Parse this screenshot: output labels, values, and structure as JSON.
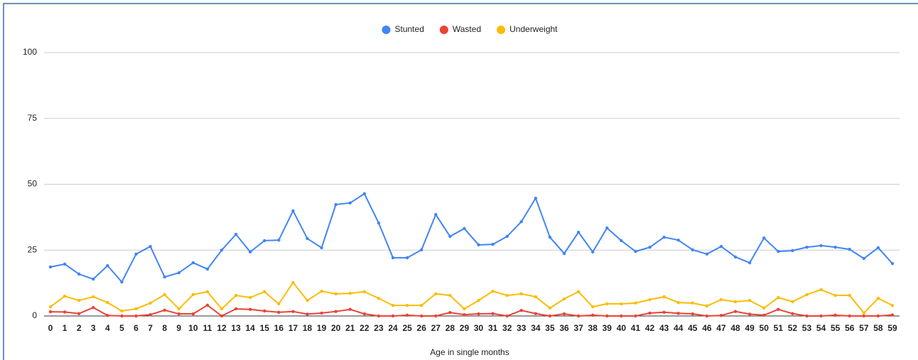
{
  "chart_data": {
    "type": "line",
    "x_label": "Age in single months",
    "categories": [
      "0",
      "1",
      "2",
      "3",
      "4",
      "5",
      "6",
      "7",
      "8",
      "9",
      "10",
      "11",
      "12",
      "13",
      "14",
      "15",
      "16",
      "17",
      "18",
      "19",
      "20",
      "21",
      "22",
      "23",
      "24",
      "25",
      "26",
      "27",
      "28",
      "29",
      "30",
      "31",
      "32",
      "33",
      "34",
      "35",
      "36",
      "37",
      "38",
      "39",
      "40",
      "41",
      "42",
      "43",
      "44",
      "45",
      "46",
      "47",
      "48",
      "49",
      "50",
      "51",
      "52",
      "53",
      "54",
      "55",
      "56",
      "57",
      "58",
      "59"
    ],
    "series": [
      {
        "name": "Stunted",
        "color": "#4285f4",
        "values": [
          18.6,
          19.7,
          15.9,
          14,
          19.1,
          12.9,
          23.5,
          26.4,
          14.8,
          16.4,
          20.2,
          17.8,
          25,
          31,
          24.3,
          28.6,
          28.8,
          39.9,
          29.4,
          25.9,
          42.3,
          42.9,
          46.4,
          35.3,
          22.1,
          22.1,
          25.1,
          38.5,
          30.2,
          33.2,
          27,
          27.2,
          30.2,
          35.8,
          44.7,
          29.9,
          23.7,
          31.8,
          24.3,
          33.4,
          28.6,
          24.5,
          26.1,
          29.9,
          28.8,
          25.1,
          23.5,
          26.4,
          22.4,
          20.2,
          29.6,
          24.5,
          24.8,
          26.1,
          26.7,
          26.1,
          25.3,
          21.8,
          25.9,
          19.9
        ]
      },
      {
        "name": "Wasted",
        "color": "#ea4335",
        "values": [
          1.6,
          1.5,
          0.9,
          3.2,
          0.2,
          0,
          0,
          0.5,
          2.2,
          0.8,
          0.8,
          4.1,
          0,
          2.7,
          2.5,
          1.9,
          1.4,
          1.7,
          0.7,
          1.1,
          1.7,
          2.5,
          0.8,
          0,
          0,
          0.3,
          0,
          0,
          1.3,
          0.5,
          0.8,
          0.9,
          0,
          2.1,
          0.9,
          0,
          0.8,
          0,
          0.3,
          0,
          0,
          0,
          1.1,
          1.4,
          1,
          0.8,
          0,
          0.2,
          1.7,
          0.7,
          0.3,
          2.5,
          0.9,
          0,
          0,
          0.3,
          0,
          0,
          0,
          0.4
        ]
      },
      {
        "name": "Underweight",
        "color": "#fbbc04",
        "values": [
          3.5,
          7.5,
          5.9,
          7.3,
          5.1,
          1.9,
          2.7,
          4.9,
          8.1,
          2.7,
          8.1,
          9.2,
          2.7,
          7.8,
          7,
          9.2,
          4.6,
          12.7,
          5.9,
          9.4,
          8.4,
          8.6,
          9.2,
          6.7,
          4,
          4,
          4,
          8.4,
          7.8,
          2.7,
          5.9,
          9.4,
          7.8,
          8.4,
          7.3,
          3,
          6.5,
          9.2,
          3.5,
          4.6,
          4.6,
          4.9,
          6.2,
          7.3,
          5.1,
          4.9,
          3.8,
          6.2,
          5.4,
          5.9,
          3,
          7,
          5.4,
          8.1,
          10,
          7.8,
          7.8,
          1.1,
          6.7,
          4
        ]
      }
    ],
    "ylim": [
      0,
      100
    ],
    "yticks": [
      0,
      25,
      50,
      75,
      100
    ],
    "grid": true,
    "legend": "top"
  }
}
